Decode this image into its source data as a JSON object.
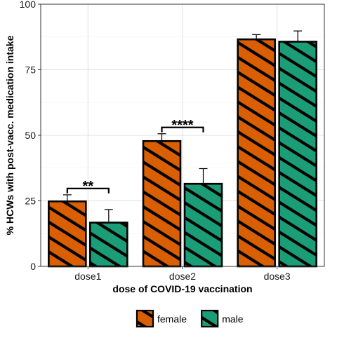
{
  "chart_data": {
    "type": "bar",
    "title": "",
    "xlabel": "dose of COVID-19 vaccination",
    "ylabel": "% HCWs with post-vacc. medication intake",
    "categories": [
      "dose1",
      "dose2",
      "dose3"
    ],
    "ylim": [
      0,
      100
    ],
    "yticks": [
      0,
      25,
      50,
      75,
      100
    ],
    "grid": true,
    "legend_position": "bottom",
    "series": [
      {
        "name": "female",
        "color": "#d95f02",
        "pattern": "diagonal-stripes",
        "values": [
          24.8,
          47.8,
          86.6
        ],
        "error_upper": [
          27.3,
          50.6,
          88.4
        ]
      },
      {
        "name": "male",
        "color": "#1b9e77",
        "pattern": "diagonal-stripes",
        "values": [
          16.7,
          31.5,
          85.7
        ],
        "error_upper": [
          21.7,
          37.3,
          89.8
        ]
      }
    ],
    "annotations": [
      {
        "category": "dose1",
        "label": "**"
      },
      {
        "category": "dose2",
        "label": "****"
      }
    ]
  }
}
